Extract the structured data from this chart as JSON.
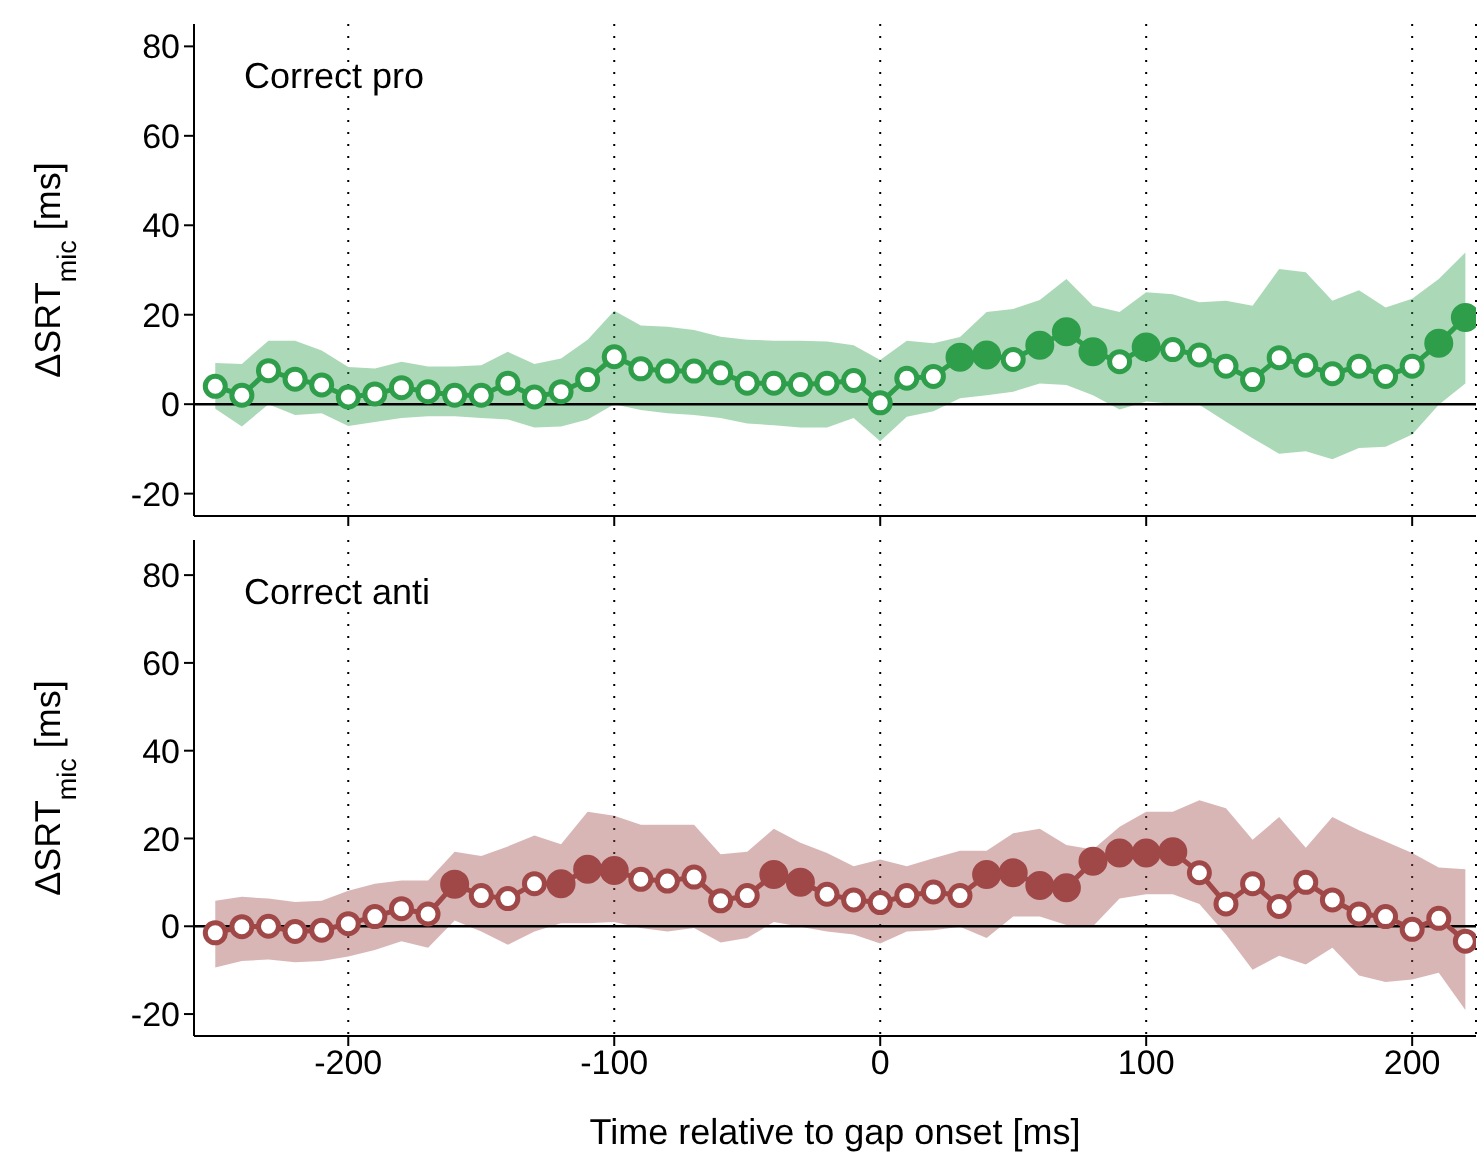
{
  "chart_data": [
    {
      "type": "line",
      "title": "Correct pro",
      "ylabel": "ΔSRT$_{mic}$ [ms]",
      "x": [
        -250,
        -240,
        -230,
        -220,
        -210,
        -200,
        -190,
        -180,
        -170,
        -160,
        -150,
        -140,
        -130,
        -120,
        -110,
        -100,
        -90,
        -80,
        -70,
        -60,
        -50,
        -40,
        -30,
        -20,
        -10,
        0,
        10,
        20,
        30,
        40,
        50,
        60,
        70,
        80,
        90,
        100,
        110,
        120,
        130,
        140,
        150,
        160,
        170,
        180,
        190,
        200,
        210,
        220
      ],
      "series": [
        {
          "color": "#2e9e4a",
          "values": [
            4,
            2,
            7.5,
            5.6,
            4.3,
            1.6,
            2.3,
            3.7,
            2.8,
            2,
            2,
            4.7,
            1.6,
            2.8,
            5.5,
            10.6,
            7.9,
            7.4,
            7.4,
            7,
            4.7,
            4.7,
            4.4,
            4.7,
            5.3,
            0.3,
            5.8,
            6.2,
            10.5,
            11,
            10,
            13.2,
            16.2,
            11.7,
            9.5,
            12.8,
            12.2,
            11,
            8.5,
            5.5,
            10.4,
            8.7,
            6.8,
            8.5,
            6.2,
            8.5,
            13.6,
            19.4
          ],
          "upper": [
            9.2,
            9,
            14.2,
            14.2,
            12,
            8.3,
            8,
            9.5,
            8.4,
            8.4,
            8.7,
            11.7,
            9,
            10.2,
            14.4,
            20.9,
            17.6,
            17.3,
            16.6,
            15.1,
            14.4,
            14.2,
            14.2,
            14,
            13.2,
            9.9,
            14.2,
            13.6,
            15,
            20.6,
            21.3,
            23.3,
            28,
            22,
            20.6,
            25,
            24.6,
            22.8,
            23.1,
            22,
            30.2,
            29.5,
            23.1,
            25.5,
            21.6,
            23.6,
            28,
            33.9
          ],
          "lower": [
            -1,
            -5,
            0,
            -2.4,
            -2,
            -4.9,
            -4,
            -3.1,
            -2.7,
            -2.7,
            -3.1,
            -3.4,
            -5.2,
            -5,
            -3.4,
            0,
            -1.3,
            -2,
            -2.4,
            -3.1,
            -4.3,
            -4.7,
            -5.2,
            -5.2,
            -3.1,
            -8.3,
            -2.8,
            -1.6,
            1.3,
            2,
            2.8,
            4.6,
            4.3,
            2,
            -1.2,
            0.6,
            0.1,
            -0.1,
            -3.9,
            -7.6,
            -11.1,
            -10.5,
            -12.3,
            -9.8,
            -9.5,
            -6.8,
            -0.1,
            4.6
          ]
        },
        {
          "type": "scatter",
          "color": "#2e9e4a",
          "values": [
            null,
            null,
            null,
            null,
            null,
            null,
            null,
            null,
            null,
            null,
            null,
            null,
            null,
            null,
            null,
            null,
            null,
            null,
            null,
            null,
            null,
            null,
            null,
            null,
            null,
            null,
            null,
            null,
            10.5,
            11,
            null,
            13.2,
            16.2,
            11.7,
            null,
            12.8,
            null,
            null,
            null,
            null,
            null,
            null,
            null,
            null,
            null,
            null,
            13.6,
            19.4
          ]
        }
      ],
      "xlim": [
        -258,
        224
      ],
      "xticks": [
        -200,
        -100,
        0,
        100,
        200
      ],
      "ylim": [
        -25,
        85
      ],
      "yticks": [
        -20,
        0,
        20,
        40,
        60,
        80
      ],
      "grid": "x",
      "marker": "circle",
      "tick_labels": "y",
      "legend": false,
      "ref_lines": [
        {
          "axis": "y",
          "value": 0,
          "color": "#000000"
        }
      ]
    },
    {
      "type": "line",
      "title": "Correct anti",
      "ylabel": "ΔSRT$_{mic}$ [ms]",
      "xlabel": "Time relative to gap onset [ms]",
      "x": [
        -250,
        -240,
        -230,
        -220,
        -210,
        -200,
        -190,
        -180,
        -170,
        -160,
        -150,
        -140,
        -130,
        -120,
        -110,
        -100,
        -90,
        -80,
        -70,
        -60,
        -50,
        -40,
        -30,
        -20,
        -10,
        0,
        10,
        20,
        30,
        40,
        50,
        60,
        70,
        80,
        90,
        100,
        110,
        120,
        130,
        140,
        150,
        160,
        170,
        180,
        190,
        200,
        210,
        220
      ],
      "series": [
        {
          "color": "#a04848",
          "values": [
            -1.5,
            -0.1,
            0,
            -1.2,
            -0.9,
            0.6,
            2.2,
            4,
            2.8,
            9.6,
            7,
            6.3,
            9.7,
            9.7,
            13,
            12.7,
            10.7,
            10.3,
            11.2,
            5.8,
            7,
            11.8,
            10,
            7.3,
            6,
            5.4,
            7,
            7.8,
            7,
            11.8,
            12.2,
            9.3,
            8.8,
            14.8,
            16.7,
            16.7,
            17,
            12.2,
            5.1,
            9.7,
            4.5,
            10,
            6,
            2.8,
            2.2,
            -0.7,
            1.8,
            -3.4
          ],
          "upper": [
            5.8,
            6.7,
            6.3,
            5.5,
            5.8,
            8.1,
            9.7,
            10.4,
            10.4,
            17,
            16,
            18.2,
            20.7,
            18.7,
            26.1,
            25.2,
            23.1,
            23.1,
            23.1,
            16.4,
            17,
            22.2,
            19,
            16.7,
            13.7,
            15.2,
            13.7,
            15.5,
            17.2,
            17.2,
            21.2,
            22.2,
            18.5,
            17.5,
            22.7,
            26.1,
            26.1,
            28.7,
            26.9,
            19.7,
            24.9,
            17.9,
            24.9,
            21.9,
            19.3,
            16.7,
            13.4,
            13
          ],
          "lower": [
            -9.4,
            -7.9,
            -7.6,
            -8.2,
            -7.9,
            -6.9,
            -5.4,
            -3.4,
            -4.9,
            1.3,
            -1.2,
            -4.2,
            -1.2,
            0.7,
            0.7,
            1,
            -0.4,
            -1.2,
            -0.4,
            -3.7,
            -2.7,
            1,
            -0.1,
            -1.2,
            -1.9,
            -3.9,
            -1.2,
            -0.9,
            -0.1,
            -2.7,
            2.2,
            2.2,
            0.3,
            0,
            6.3,
            7.3,
            7.3,
            5.1,
            -1.9,
            -9.9,
            -6.7,
            -8.7,
            -4.9,
            -11.2,
            -12.7,
            -12.1,
            -10.6,
            -19.1
          ]
        },
        {
          "type": "scatter",
          "color": "#a04848",
          "values": [
            null,
            null,
            null,
            null,
            null,
            null,
            null,
            null,
            null,
            9.6,
            null,
            null,
            null,
            9.7,
            13,
            12.7,
            null,
            null,
            null,
            null,
            null,
            11.8,
            10,
            null,
            null,
            null,
            null,
            null,
            null,
            11.8,
            12.2,
            9.3,
            8.8,
            14.8,
            16.7,
            16.7,
            17,
            null,
            null,
            null,
            null,
            null,
            null,
            null,
            null,
            null,
            null,
            null
          ]
        }
      ],
      "xlim": [
        -258,
        224
      ],
      "xticks": [
        -200,
        -100,
        0,
        100,
        200
      ],
      "ylim": [
        -25,
        88
      ],
      "yticks": [
        -20,
        0,
        20,
        40,
        60,
        80
      ],
      "grid": "x",
      "marker": "circle",
      "legend": false,
      "ref_lines": [
        {
          "axis": "y",
          "value": 0,
          "color": "#000000"
        }
      ]
    }
  ]
}
